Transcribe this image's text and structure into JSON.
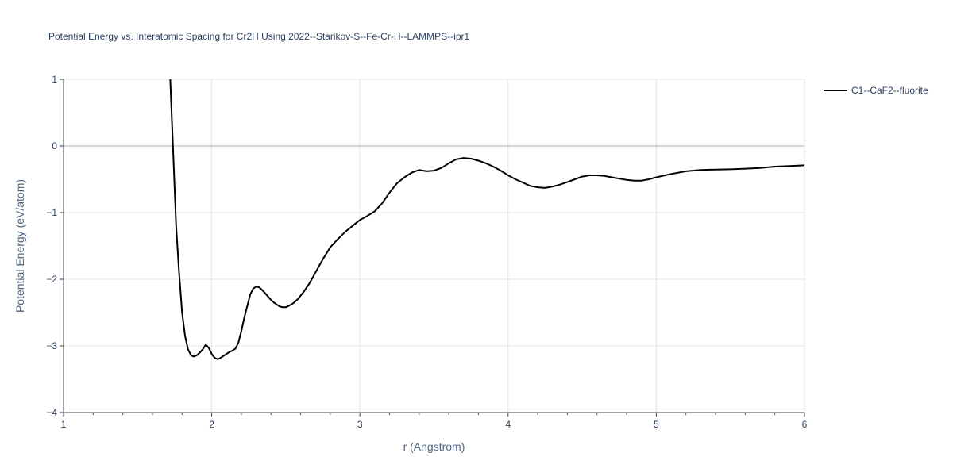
{
  "chart_data": {
    "type": "line",
    "title": "Potential Energy vs. Interatomic Spacing for Cr2H Using 2022--Starikov-S--Fe-Cr-H--LAMMPS--ipr1",
    "xlabel": "r (Angstrom)",
    "ylabel": "Potential Energy (eV/atom)",
    "xlim": [
      1,
      6
    ],
    "ylim": [
      -4,
      1
    ],
    "xticks": [
      1,
      2,
      3,
      4,
      5,
      6
    ],
    "xtick_labels": [
      "1",
      "2",
      "3",
      "4",
      "5",
      "6"
    ],
    "yticks": [
      1,
      0,
      -1,
      -2,
      -3,
      -4
    ],
    "ytick_labels": [
      "1",
      "0",
      "−1",
      "−2",
      "−3",
      "−4"
    ],
    "grid": true,
    "legend_position": "top-right",
    "series": [
      {
        "name": "C1--CaF2--fluorite",
        "color": "#000000",
        "x": [
          1.72,
          1.74,
          1.76,
          1.78,
          1.8,
          1.82,
          1.84,
          1.86,
          1.88,
          1.9,
          1.92,
          1.94,
          1.96,
          1.98,
          2.0,
          2.02,
          2.04,
          2.06,
          2.08,
          2.1,
          2.12,
          2.14,
          2.16,
          2.18,
          2.2,
          2.22,
          2.24,
          2.26,
          2.28,
          2.3,
          2.32,
          2.34,
          2.36,
          2.38,
          2.4,
          2.42,
          2.44,
          2.46,
          2.48,
          2.5,
          2.52,
          2.55,
          2.58,
          2.62,
          2.66,
          2.7,
          2.75,
          2.8,
          2.85,
          2.9,
          2.95,
          3.0,
          3.05,
          3.1,
          3.15,
          3.2,
          3.25,
          3.3,
          3.35,
          3.4,
          3.45,
          3.5,
          3.55,
          3.6,
          3.65,
          3.7,
          3.75,
          3.8,
          3.85,
          3.9,
          3.95,
          4.0,
          4.05,
          4.1,
          4.15,
          4.2,
          4.25,
          4.3,
          4.35,
          4.4,
          4.45,
          4.5,
          4.55,
          4.6,
          4.65,
          4.7,
          4.75,
          4.8,
          4.85,
          4.9,
          4.95,
          5.0,
          5.1,
          5.2,
          5.3,
          5.4,
          5.5,
          5.6,
          5.7,
          5.8,
          5.9,
          6.0
        ],
        "y": [
          1.0,
          -0.1,
          -1.2,
          -1.9,
          -2.5,
          -2.85,
          -3.05,
          -3.14,
          -3.16,
          -3.14,
          -3.1,
          -3.05,
          -2.98,
          -3.03,
          -3.12,
          -3.18,
          -3.2,
          -3.18,
          -3.15,
          -3.12,
          -3.09,
          -3.07,
          -3.04,
          -2.95,
          -2.78,
          -2.57,
          -2.4,
          -2.23,
          -2.14,
          -2.11,
          -2.12,
          -2.16,
          -2.21,
          -2.26,
          -2.31,
          -2.35,
          -2.38,
          -2.41,
          -2.42,
          -2.42,
          -2.4,
          -2.36,
          -2.3,
          -2.19,
          -2.06,
          -1.9,
          -1.7,
          -1.52,
          -1.4,
          -1.29,
          -1.2,
          -1.11,
          -1.05,
          -0.98,
          -0.86,
          -0.7,
          -0.56,
          -0.47,
          -0.4,
          -0.36,
          -0.38,
          -0.37,
          -0.33,
          -0.26,
          -0.2,
          -0.18,
          -0.19,
          -0.22,
          -0.26,
          -0.31,
          -0.37,
          -0.44,
          -0.5,
          -0.55,
          -0.6,
          -0.62,
          -0.63,
          -0.61,
          -0.58,
          -0.54,
          -0.5,
          -0.46,
          -0.44,
          -0.44,
          -0.45,
          -0.47,
          -0.49,
          -0.51,
          -0.52,
          -0.52,
          -0.5,
          -0.47,
          -0.42,
          -0.38,
          -0.36,
          -0.355,
          -0.35,
          -0.34,
          -0.33,
          -0.31,
          -0.3,
          -0.29
        ]
      }
    ]
  }
}
